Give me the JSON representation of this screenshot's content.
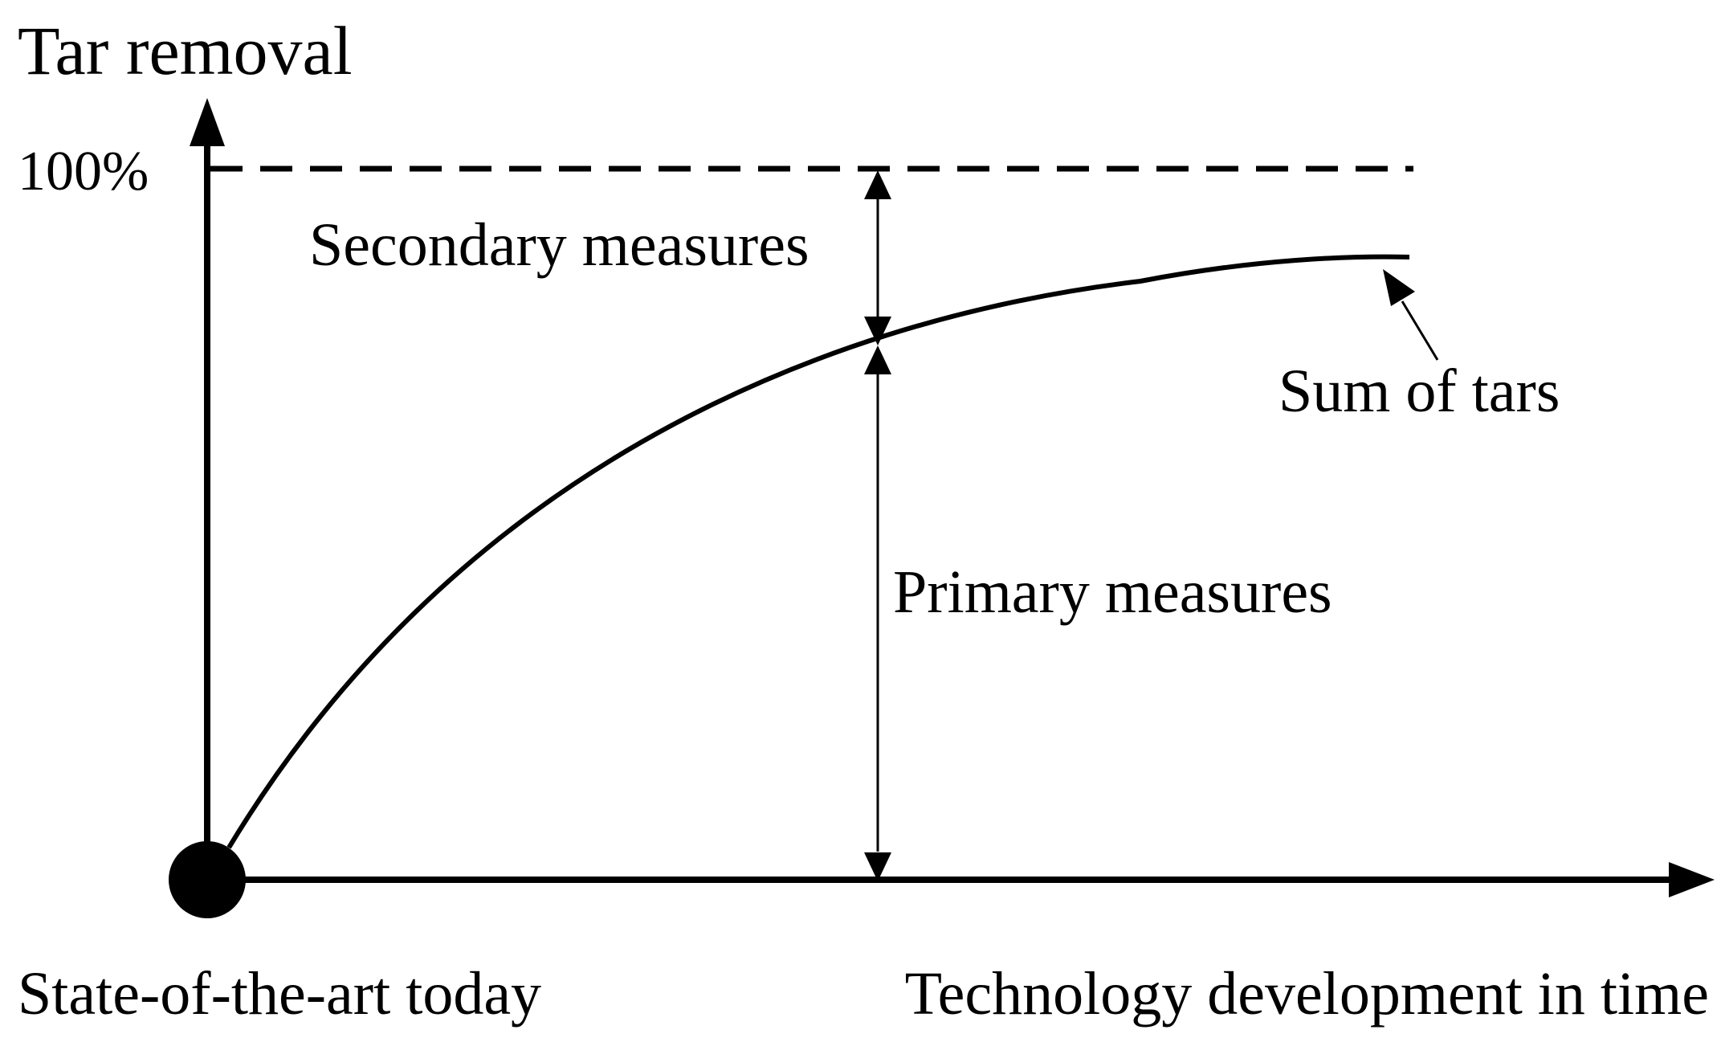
{
  "labels": {
    "y_axis_title": "Tar removal",
    "y_max_tick": "100%",
    "secondary": "Secondary measures",
    "primary": "Primary measures",
    "curve": "Sum of tars",
    "x_origin": "State-of-the-art today",
    "x_axis_title": "Technology development in time"
  },
  "colors": {
    "ink": "#000000",
    "background": "#ffffff"
  }
}
